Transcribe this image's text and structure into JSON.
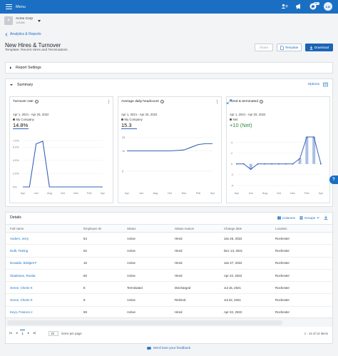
{
  "topbar": {
    "menu_label": "Menu",
    "notifications_count": "99+",
    "avatar_initials": "LU"
  },
  "org": {
    "logo_letter": "A",
    "name": "Acme Corp",
    "id": "123456"
  },
  "breadcrumb": {
    "back_label": "Analytics & Reports"
  },
  "page": {
    "title": "New Hires & Turnover",
    "template_line": "Template: Recent Hires and Terminations"
  },
  "actions": {
    "share": "Share",
    "template": "Template",
    "download": "Download"
  },
  "report_settings": {
    "label": "Report Settings"
  },
  "summary": {
    "label": "Summary",
    "options_label": "Options",
    "cards": [
      {
        "title": "Turnover rate",
        "date_range": "Apr 1, 2021 - Apr 25, 2022",
        "legend": "My Company",
        "kpi": "14.8%",
        "y_ticks": [
          "7.0%",
          "6.0%",
          "4.0%",
          "2.0%",
          "0%"
        ],
        "x_ticks": [
          "Apr",
          "Jun",
          "Aug",
          "Oct",
          "Dec",
          "Feb",
          "Apr"
        ],
        "values": [
          0,
          0,
          6.5,
          6.9,
          0,
          0,
          0,
          0,
          0,
          0,
          0,
          0,
          0
        ]
      },
      {
        "title": "Average daily headcount",
        "date_range": "Apr 1, 2021 - Apr 25, 2022",
        "legend": "My Company",
        "kpi": "15.3",
        "y_ticks": [
          "25",
          "10",
          "5"
        ],
        "x_ticks": [
          "Apr",
          "Jun",
          "Aug",
          "Oct",
          "Dec",
          "Feb",
          "Apr"
        ],
        "values": [
          10,
          10,
          10,
          10,
          10,
          10,
          10,
          10.5,
          11,
          14,
          17,
          18,
          18
        ]
      },
      {
        "title": "Hired & terminated",
        "date_range": "Apr 1, 2021 - Apr 25, 2022",
        "legend": "Net",
        "kpi": "+10 (Net)",
        "y_ticks": [
          "4",
          "2",
          "0",
          "-2",
          "-4"
        ],
        "x_ticks": [
          "Apr",
          "Jun",
          "Aug",
          "Oct",
          "Dec",
          "Feb",
          "Apr"
        ],
        "hired": [
          0,
          0,
          0,
          0,
          0,
          0,
          0,
          0,
          0,
          1,
          5,
          5,
          0
        ],
        "terminated": [
          0,
          0,
          -1,
          0,
          0,
          0,
          0,
          0,
          0,
          0,
          0,
          0,
          0
        ],
        "net": [
          0,
          0,
          -1,
          0,
          0,
          0,
          0,
          0,
          0,
          1,
          5,
          5,
          0
        ]
      }
    ]
  },
  "details": {
    "label": "Details",
    "columns_label": "Columns",
    "groups_label": "Groups",
    "headers": [
      "Full name",
      "Employee ID",
      "Status",
      "Status reason",
      "Change date",
      "Location"
    ],
    "rows": [
      [
        "Anders, Jerry",
        "54",
        "Active",
        "Hired",
        "Jan 26, 2022",
        "Rochester"
      ],
      [
        "Dolb, Testing",
        "52",
        "Active",
        "Hired",
        "Dec 13, 2021",
        "Rochester"
      ],
      [
        "Donaldo, Bridgett F",
        "16",
        "Active",
        "Hired",
        "Jan 27, 2022",
        "Rochester"
      ],
      [
        "Gladstone, Ronda",
        "60",
        "Active",
        "Hired",
        "Apr 22, 2022",
        "Rochester"
      ],
      [
        "Green, Cherie K",
        "8",
        "Terminated",
        "Discharged",
        "Jul 15, 2021",
        "Rochester"
      ],
      [
        "Green, Cherie K",
        "8",
        "Active",
        "Rehired",
        "Jul 22, 2021",
        "Rochester"
      ],
      [
        "Keys, Frances J",
        "59",
        "Active",
        "Hired",
        "Apr 22, 2022",
        "Rochester"
      ]
    ],
    "pager": {
      "current_page": "1",
      "page_size": "25",
      "items_per_page": "items per page",
      "range": "1 - 14 of 14 items"
    }
  },
  "feedback": {
    "label": "We'd love your feedback"
  },
  "help": {
    "label": "?"
  },
  "colors": {
    "brand": "#1b6fc3",
    "series": "#3563b8",
    "hired": "#a9bfe6"
  }
}
